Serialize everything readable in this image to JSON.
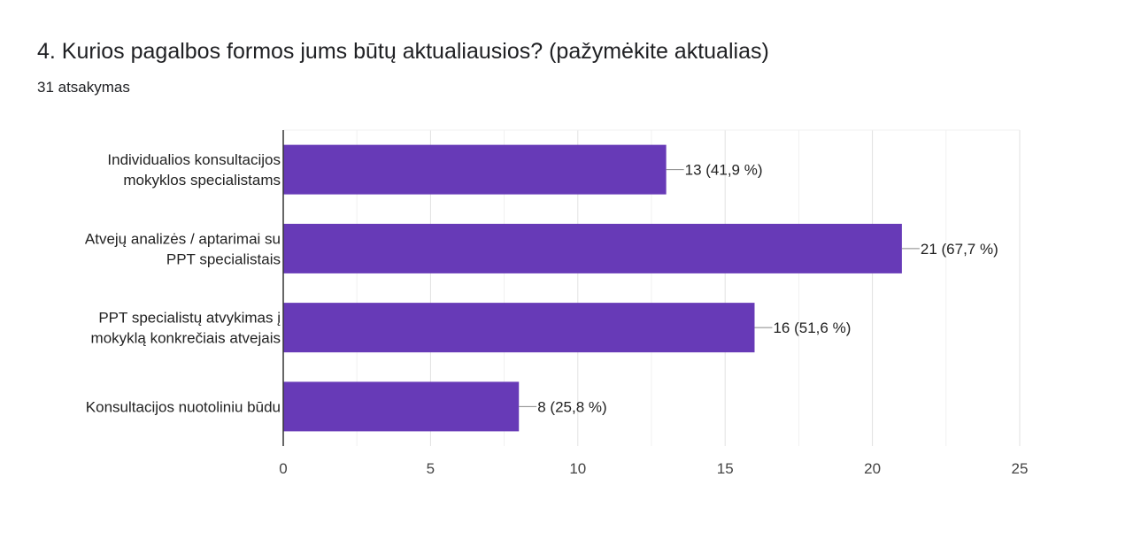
{
  "header": {
    "title": "4. Kurios pagalbos formos jums būtų aktualiausios? (pažymėkite aktualias)",
    "response_count": "31 atsakymas"
  },
  "chart_data": {
    "type": "bar",
    "orientation": "horizontal",
    "categories": [
      [
        "Individualios konsultacijos",
        "mokyklos specialistams"
      ],
      [
        "Atvejų analizės / aptarimai su",
        "PPT specialistais"
      ],
      [
        "PPT specialistų atvykimas į",
        "mokyklą konkrečiais atvejais"
      ],
      [
        "Konsultacijos nuotoliniu būdu"
      ]
    ],
    "values": [
      13,
      21,
      16,
      8
    ],
    "data_labels": [
      "13 (41,9 %)",
      "21 (67,7 %)",
      "16 (51,6 %)",
      "8 (25,8 %)"
    ],
    "xlim": [
      0,
      25
    ],
    "x_ticks": [
      0,
      5,
      10,
      15,
      20,
      25
    ],
    "bar_color": "#673ab7",
    "grid": true
  }
}
